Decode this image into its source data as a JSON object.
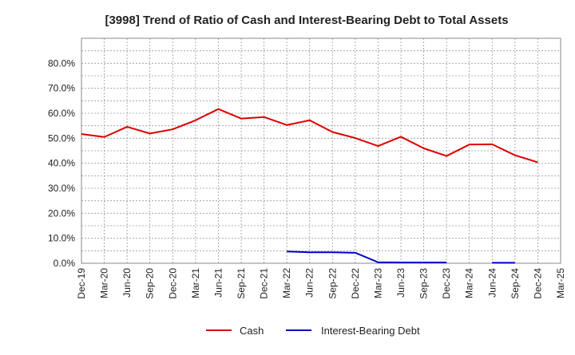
{
  "chart_data": {
    "type": "line",
    "title": "[3998]  Trend of Ratio of Cash and Interest-Bearing Debt to Total Assets",
    "xlabel": "",
    "ylabel": "",
    "categories": [
      "Dec-19",
      "Mar-20",
      "Jun-20",
      "Sep-20",
      "Dec-20",
      "Mar-21",
      "Jun-21",
      "Sep-21",
      "Dec-21",
      "Mar-22",
      "Jun-22",
      "Sep-22",
      "Dec-22",
      "Mar-23",
      "Jun-23",
      "Sep-23",
      "Dec-23",
      "Mar-24",
      "Jun-24",
      "Sep-24",
      "Dec-24",
      "Mar-25"
    ],
    "ylim": [
      0,
      90
    ],
    "yticks": [
      0,
      10,
      20,
      30,
      40,
      50,
      60,
      70,
      80
    ],
    "ytick_labels": [
      "0.0%",
      "10.0%",
      "20.0%",
      "30.0%",
      "40.0%",
      "50.0%",
      "60.0%",
      "70.0%",
      "80.0%"
    ],
    "grid": true,
    "legend_position": "bottom",
    "series": [
      {
        "name": "Cash",
        "color": "#dd0000",
        "values": [
          51.7,
          50.5,
          54.6,
          51.9,
          53.6,
          57.2,
          61.7,
          57.9,
          58.5,
          55.3,
          57.2,
          52.5,
          50.1,
          46.9,
          50.6,
          46.0,
          42.9,
          47.5,
          47.6,
          43.2,
          40.4,
          null
        ]
      },
      {
        "name": "Interest-Bearing Debt",
        "color": "#0000cc",
        "values": [
          null,
          null,
          null,
          null,
          null,
          null,
          null,
          null,
          null,
          4.7,
          4.4,
          4.4,
          4.2,
          0.4,
          0.3,
          0.3,
          0.3,
          null,
          0.2,
          0.2,
          null,
          null
        ]
      }
    ]
  }
}
